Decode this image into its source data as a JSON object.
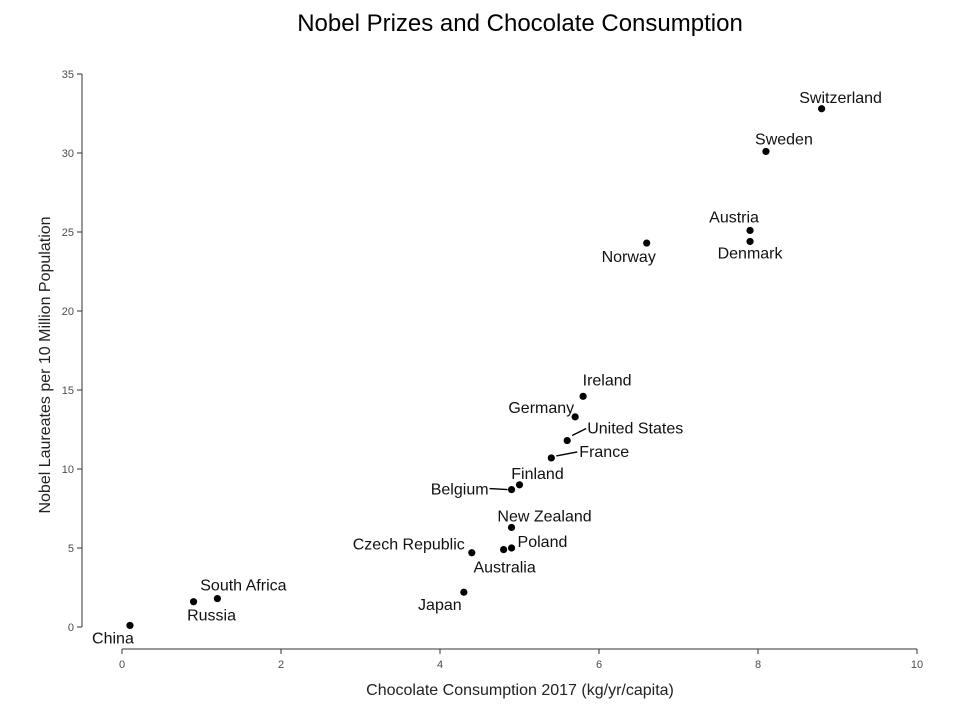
{
  "chart_data": {
    "type": "scatter",
    "title": "Nobel Prizes and Chocolate Consumption",
    "xlabel": "Chocolate Consumption 2017 (kg/yr/capita)",
    "ylabel": "Nobel Laureates per 10 Million Population",
    "xlim": [
      0,
      10
    ],
    "ylim": [
      0,
      35
    ],
    "xticks": [
      0,
      2,
      4,
      6,
      8,
      10
    ],
    "yticks": [
      0,
      5,
      10,
      15,
      20,
      25,
      30,
      35
    ],
    "grid": false,
    "point_color": "#000000",
    "points": [
      {
        "label": "Switzerland",
        "x": 8.8,
        "y": 32.8
      },
      {
        "label": "Sweden",
        "x": 8.1,
        "y": 30.1
      },
      {
        "label": "Austria",
        "x": 7.9,
        "y": 25.1
      },
      {
        "label": "Denmark",
        "x": 7.9,
        "y": 24.4
      },
      {
        "label": "Norway",
        "x": 6.6,
        "y": 24.3
      },
      {
        "label": "Ireland",
        "x": 5.8,
        "y": 14.6
      },
      {
        "label": "Germany",
        "x": 5.7,
        "y": 13.3
      },
      {
        "label": "United States",
        "x": 5.6,
        "y": 11.8
      },
      {
        "label": "France",
        "x": 5.4,
        "y": 10.7
      },
      {
        "label": "Finland",
        "x": 5.0,
        "y": 9.0
      },
      {
        "label": "Belgium",
        "x": 4.9,
        "y": 8.7
      },
      {
        "label": "New Zealand",
        "x": 4.9,
        "y": 6.3
      },
      {
        "label": "Poland",
        "x": 4.9,
        "y": 5.0
      },
      {
        "label": "Australia",
        "x": 4.8,
        "y": 4.9
      },
      {
        "label": "Czech Republic",
        "x": 4.4,
        "y": 4.7
      },
      {
        "label": "Japan",
        "x": 4.3,
        "y": 2.2
      },
      {
        "label": "South Africa",
        "x": 1.2,
        "y": 1.8
      },
      {
        "label": "Russia",
        "x": 0.9,
        "y": 1.6
      },
      {
        "label": "China",
        "x": 0.1,
        "y": 0.1
      }
    ]
  }
}
